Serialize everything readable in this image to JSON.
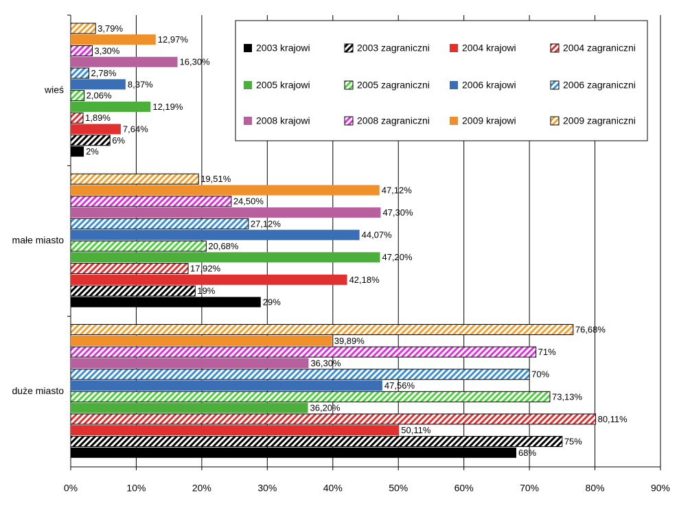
{
  "chart_data": {
    "type": "hbar",
    "categories": [
      "wieś",
      "małe miasto",
      "duże miasto"
    ],
    "series": [
      {
        "name": "2003 krajowi",
        "color": "#000000",
        "hatched": false,
        "values": [
          2,
          29,
          68
        ],
        "value_labels": [
          "2%",
          "29%",
          "68%"
        ]
      },
      {
        "name": "2003 zagraniczni",
        "color": "#000000",
        "hatched": true,
        "values": [
          6,
          19,
          75
        ],
        "value_labels": [
          "6%",
          "19%",
          "75%"
        ]
      },
      {
        "name": "2004 krajowi",
        "color": "#e03030",
        "hatched": false,
        "values": [
          7.64,
          42.18,
          50.11
        ],
        "value_labels": [
          "7,64%",
          "42,18%",
          "50,11%"
        ]
      },
      {
        "name": "2004 zagraniczni",
        "color": "#e03030",
        "hatched": true,
        "values": [
          1.89,
          17.92,
          80.11
        ],
        "value_labels": [
          "1,89%",
          "17,92%",
          "80,11%"
        ]
      },
      {
        "name": "2005 krajowi",
        "color": "#4caf3c",
        "hatched": false,
        "values": [
          12.19,
          47.2,
          36.2
        ],
        "value_labels": [
          "12,19%",
          "47,20%",
          "36,20%"
        ]
      },
      {
        "name": "2005 zagraniczni",
        "color": "#4cd13c",
        "hatched": true,
        "values": [
          2.06,
          20.68,
          73.13
        ],
        "value_labels": [
          "2,06%",
          "20,68%",
          "73,13%"
        ]
      },
      {
        "name": "2006 krajowi",
        "color": "#3a6fb5",
        "hatched": false,
        "values": [
          8.37,
          44.07,
          47.56
        ],
        "value_labels": [
          "8,37%",
          "44,07%",
          "47,56%"
        ]
      },
      {
        "name": "2006 zagraniczni",
        "color": "#3a8fd5",
        "hatched": true,
        "values": [
          2.78,
          27.12,
          70
        ],
        "value_labels": [
          "2,78%",
          "27,12%",
          "70%"
        ]
      },
      {
        "name": "2008 krajowi",
        "color": "#b8609e",
        "hatched": false,
        "values": [
          16.3,
          47.3,
          36.3
        ],
        "value_labels": [
          "16,30%",
          "47,30%",
          "36,30%"
        ]
      },
      {
        "name": "2008 zagraniczni",
        "color": "#e030e0",
        "hatched": true,
        "values": [
          3.3,
          24.5,
          71
        ],
        "value_labels": [
          "3,30%",
          "24,50%",
          "71%"
        ]
      },
      {
        "name": "2009 krajowi",
        "color": "#f0902a",
        "hatched": false,
        "values": [
          12.97,
          47.12,
          39.89
        ],
        "value_labels": [
          "12,97%",
          "47,12%",
          "39,89%"
        ]
      },
      {
        "name": "2009 zagraniczni",
        "color": "#f0a030",
        "hatched": true,
        "values": [
          3.79,
          19.51,
          76.68
        ],
        "value_labels": [
          "3,79%",
          "19,51%",
          "76,68%"
        ]
      }
    ],
    "xlim": [
      0,
      90
    ],
    "xticks": [
      {
        "value": 0,
        "label": "0%"
      },
      {
        "value": 10,
        "label": "10%"
      },
      {
        "value": 20,
        "label": "20%"
      },
      {
        "value": 30,
        "label": "30%"
      },
      {
        "value": 40,
        "label": "40%"
      },
      {
        "value": 50,
        "label": "50%"
      },
      {
        "value": 60,
        "label": "60%"
      },
      {
        "value": 70,
        "label": "70%"
      },
      {
        "value": 80,
        "label": "80%"
      },
      {
        "value": 90,
        "label": "90%"
      }
    ],
    "grid": true,
    "legend": "upper right"
  }
}
